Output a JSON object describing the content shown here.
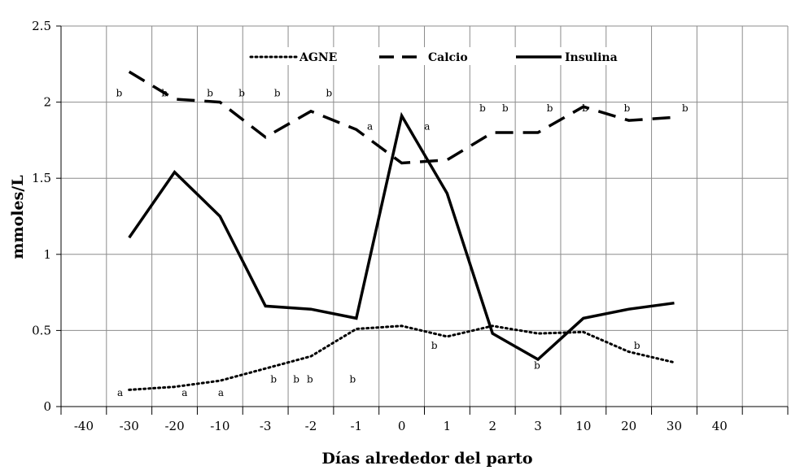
{
  "chart_data": {
    "type": "line",
    "title": "",
    "xlabel": "Días alrededor del parto",
    "ylabel": "mmoles/L",
    "ylim": [
      0,
      2.5
    ],
    "yticks": [
      "0",
      "0.5",
      "1",
      "1.5",
      "2",
      "2.5"
    ],
    "categories": [
      "-40",
      "-30",
      "-20",
      "-10",
      "-3",
      "-2",
      "-1",
      "0",
      "1",
      "2",
      "3",
      "10",
      "20",
      "30",
      "40"
    ],
    "grid": true,
    "legend_position": "top",
    "series": [
      {
        "name": "AGNE",
        "style": "dotted",
        "color": "#000000",
        "values": [
          null,
          0.11,
          0.13,
          0.17,
          0.25,
          0.33,
          0.51,
          0.53,
          0.46,
          0.53,
          0.48,
          0.49,
          0.36,
          0.29,
          null
        ]
      },
      {
        "name": "Calcio",
        "style": "dashed",
        "color": "#000000",
        "values": [
          null,
          2.2,
          2.02,
          2.0,
          1.77,
          1.94,
          1.82,
          1.6,
          1.62,
          1.8,
          1.8,
          1.97,
          1.88,
          1.9,
          null
        ]
      },
      {
        "name": "Insulina",
        "style": "solid",
        "color": "#000000",
        "values": [
          null,
          1.11,
          1.54,
          1.25,
          0.66,
          0.64,
          0.58,
          1.91,
          1.4,
          0.48,
          0.31,
          0.58,
          0.64,
          0.68,
          null
        ]
      }
    ],
    "annotations": [
      {
        "text": "b",
        "x": "-30",
        "dx": -0.22,
        "y": 2.06
      },
      {
        "text": "b",
        "x": "-20",
        "dx": -0.22,
        "y": 2.06
      },
      {
        "text": "b",
        "x": "-10",
        "dx": -0.22,
        "y": 2.06
      },
      {
        "text": "b",
        "x": "-3",
        "dx": -0.52,
        "y": 2.06
      },
      {
        "text": "b",
        "x": "-3",
        "dx": 0.26,
        "y": 2.06
      },
      {
        "text": "b",
        "x": "-2",
        "dx": 0.4,
        "y": 2.06
      },
      {
        "text": "a",
        "x": "-1",
        "dx": 0.3,
        "y": 1.84
      },
      {
        "text": "a",
        "x": "0",
        "dx": 0.56,
        "y": 1.84
      },
      {
        "text": "b",
        "x": "2",
        "dx": -0.22,
        "y": 1.96
      },
      {
        "text": "b",
        "x": "3",
        "dx": -0.72,
        "y": 1.96
      },
      {
        "text": "b",
        "x": "3",
        "dx": 0.26,
        "y": 1.96
      },
      {
        "text": "b",
        "x": "10",
        "dx": 0.04,
        "y": 1.96
      },
      {
        "text": "b",
        "x": "20",
        "dx": -0.04,
        "y": 1.96
      },
      {
        "text": "b",
        "x": "30",
        "dx": 0.24,
        "y": 1.96
      },
      {
        "text": "a",
        "x": "-30",
        "dx": -0.2,
        "y": 0.09
      },
      {
        "text": "a",
        "x": "-20",
        "dx": 0.22,
        "y": 0.09
      },
      {
        "text": "a",
        "x": "-10",
        "dx": 0.02,
        "y": 0.09
      },
      {
        "text": "b",
        "x": "-3",
        "dx": 0.18,
        "y": 0.18
      },
      {
        "text": "b",
        "x": "-2",
        "dx": -0.32,
        "y": 0.18
      },
      {
        "text": "b",
        "x": "-1",
        "dx": -1.02,
        "y": 0.18
      },
      {
        "text": "b",
        "x": "-1",
        "dx": -0.08,
        "y": 0.18
      },
      {
        "text": "b",
        "x": "1",
        "dx": -0.28,
        "y": 0.4
      },
      {
        "text": "b",
        "x": "3",
        "dx": -0.02,
        "y": 0.27
      },
      {
        "text": "b",
        "x": "20",
        "dx": 0.18,
        "y": 0.4
      }
    ]
  }
}
